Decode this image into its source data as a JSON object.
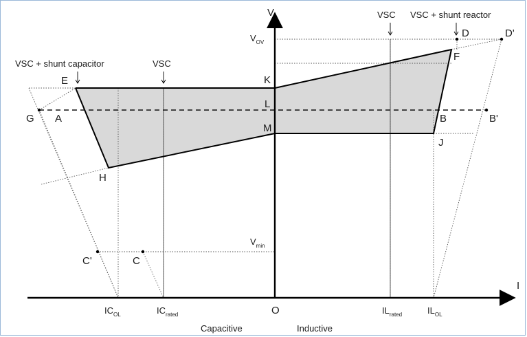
{
  "axes": {
    "y_label": "V",
    "x_label": "I",
    "origin_label": "O",
    "v_ov": {
      "main": "V",
      "sub": "OV"
    },
    "v_min": {
      "main": "V",
      "sub": "min"
    }
  },
  "x_ticks": {
    "ic_ol": {
      "main": "IC",
      "sub": "OL"
    },
    "ic_rated": {
      "main": "IC",
      "sub": "rated"
    },
    "il_rated": {
      "main": "IL",
      "sub": "rated"
    },
    "il_ol": {
      "main": "IL",
      "sub": "OL"
    }
  },
  "regions": {
    "capacitive": "Capacitive",
    "inductive": "Inductive"
  },
  "annotations": {
    "vsc_shunt_capacitor": "VSC + shunt capacitor",
    "vsc_left": "VSC",
    "vsc_right": "VSC",
    "vsc_shunt_reactor": "VSC + shunt reactor"
  },
  "points": {
    "A": "A",
    "B": "B",
    "B_prime": "B'",
    "C": "C",
    "C_prime": "C'",
    "D": "D",
    "D_prime": "D'",
    "E": "E",
    "F": "F",
    "G": "G",
    "H": "H",
    "J": "J",
    "K": "K",
    "L": "L",
    "M": "M"
  },
  "colors": {
    "shaded_region": "#d9d9d9",
    "frame": "#9ab8d8"
  }
}
